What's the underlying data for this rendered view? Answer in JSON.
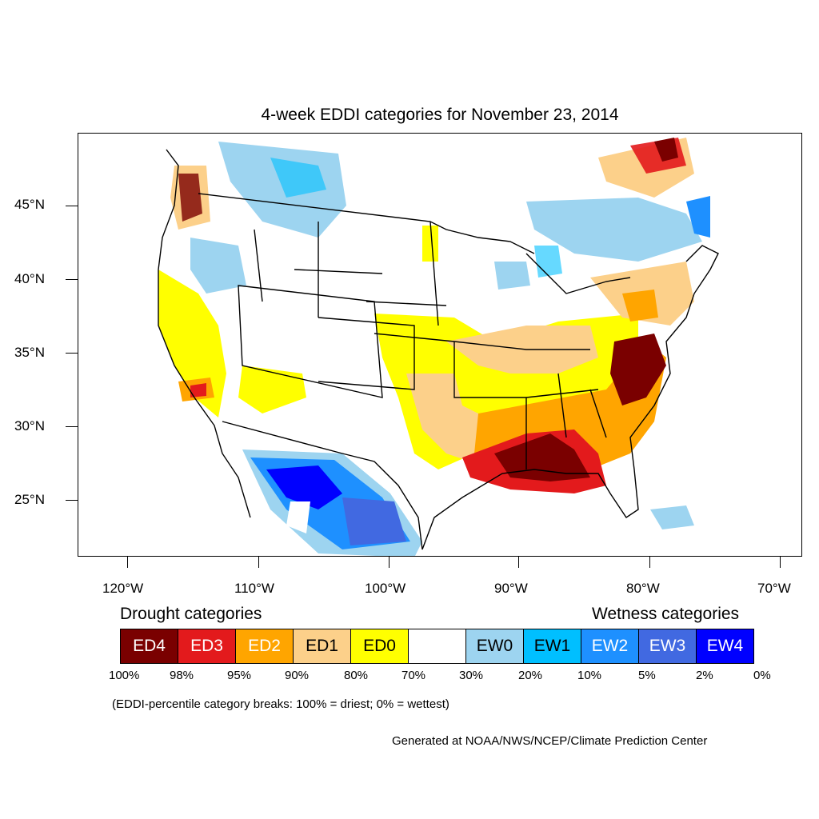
{
  "title": "4-week EDDI categories for November 23, 2014",
  "lat_labels": [
    "45°N",
    "40°N",
    "35°N",
    "30°N",
    "25°N"
  ],
  "lon_labels": [
    "120°W",
    "110°W",
    "100°W",
    "90°W",
    "80°W",
    "70°W"
  ],
  "drought_heading": "Drought categories",
  "wetness_heading": "Wetness categories",
  "categories": [
    {
      "label": "ED4",
      "color": "#7a0000",
      "text_color": "#ffffff"
    },
    {
      "label": "ED3",
      "color": "#e31a1c",
      "text_color": "#ffffff"
    },
    {
      "label": "ED2",
      "color": "#ffa500",
      "text_color": "#ffffff"
    },
    {
      "label": "ED1",
      "color": "#fcd08a",
      "text_color": "#000000"
    },
    {
      "label": "ED0",
      "color": "#ffff00",
      "text_color": "#000000"
    },
    {
      "label": "",
      "color": "#ffffff",
      "text_color": "#000000"
    },
    {
      "label": "EW0",
      "color": "#9dd4f0",
      "text_color": "#000000"
    },
    {
      "label": "EW1",
      "color": "#00bfff",
      "text_color": "#000000"
    },
    {
      "label": "EW2",
      "color": "#1e90ff",
      "text_color": "#ffffff"
    },
    {
      "label": "EW3",
      "color": "#4169e1",
      "text_color": "#ffffff"
    },
    {
      "label": "EW4",
      "color": "#0000ff",
      "text_color": "#ffffff"
    }
  ],
  "percent_breaks": [
    "100%",
    "98%",
    "95%",
    "90%",
    "80%",
    "70%",
    "30%",
    "20%",
    "10%",
    "5%",
    "2%",
    "0%"
  ],
  "note": "(EDDI-percentile category breaks: 100% = driest; 0% = wettest)",
  "credit": "Generated at NOAA/NWS/NCEP/Climate Prediction Center"
}
